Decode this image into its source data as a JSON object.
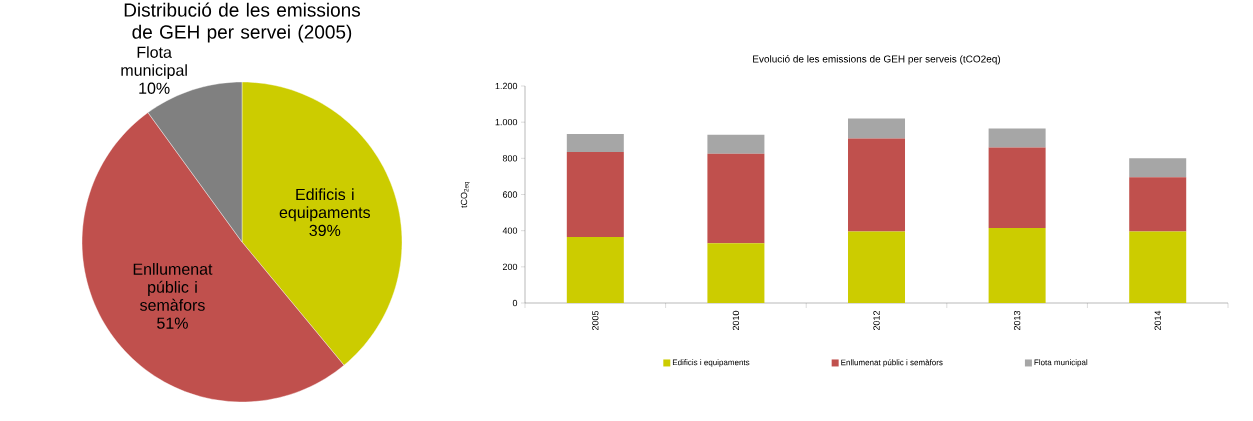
{
  "chart_data": [
    {
      "type": "pie",
      "title": "Distribució de les emissions de GEH per servei (2005)",
      "categories": [
        "Edificis i equipaments",
        "Enllumenat públic i semàfors",
        "Flota municipal"
      ],
      "values": [
        39,
        51,
        10
      ],
      "value_labels": [
        "39%",
        "51%",
        "10%"
      ],
      "colors": [
        "#cccc00",
        "#c0504d",
        "#808080"
      ],
      "legend": false
    },
    {
      "type": "bar",
      "title": "Evolució de les emissions de GEH per serveis (tCO2eq)",
      "ylabel": "tCO$_{2eq}$",
      "categories": [
        "2005",
        "2010",
        "2012",
        "2013",
        "2014"
      ],
      "stacked": true,
      "series": [
        {
          "name": "Edificis i equipaments",
          "color": "#cccc00",
          "values": [
            365,
            330,
            395,
            415,
            395
          ]
        },
        {
          "name": "Enllumenat públic i semàfors",
          "color": "#c0504d",
          "values": [
            470,
            495,
            515,
            445,
            300
          ]
        },
        {
          "name": "Flota municipal",
          "color": "#a6a6a6",
          "values": [
            100,
            105,
            110,
            105,
            105
          ]
        }
      ],
      "ylim": [
        0,
        1200
      ],
      "yticks": [
        0,
        200,
        400,
        600,
        800,
        {
          "value": 1000,
          "label": "1.000"
        },
        {
          "value": 1200,
          "label": "1.200"
        }
      ],
      "grid": false,
      "legend": "bottom"
    }
  ]
}
